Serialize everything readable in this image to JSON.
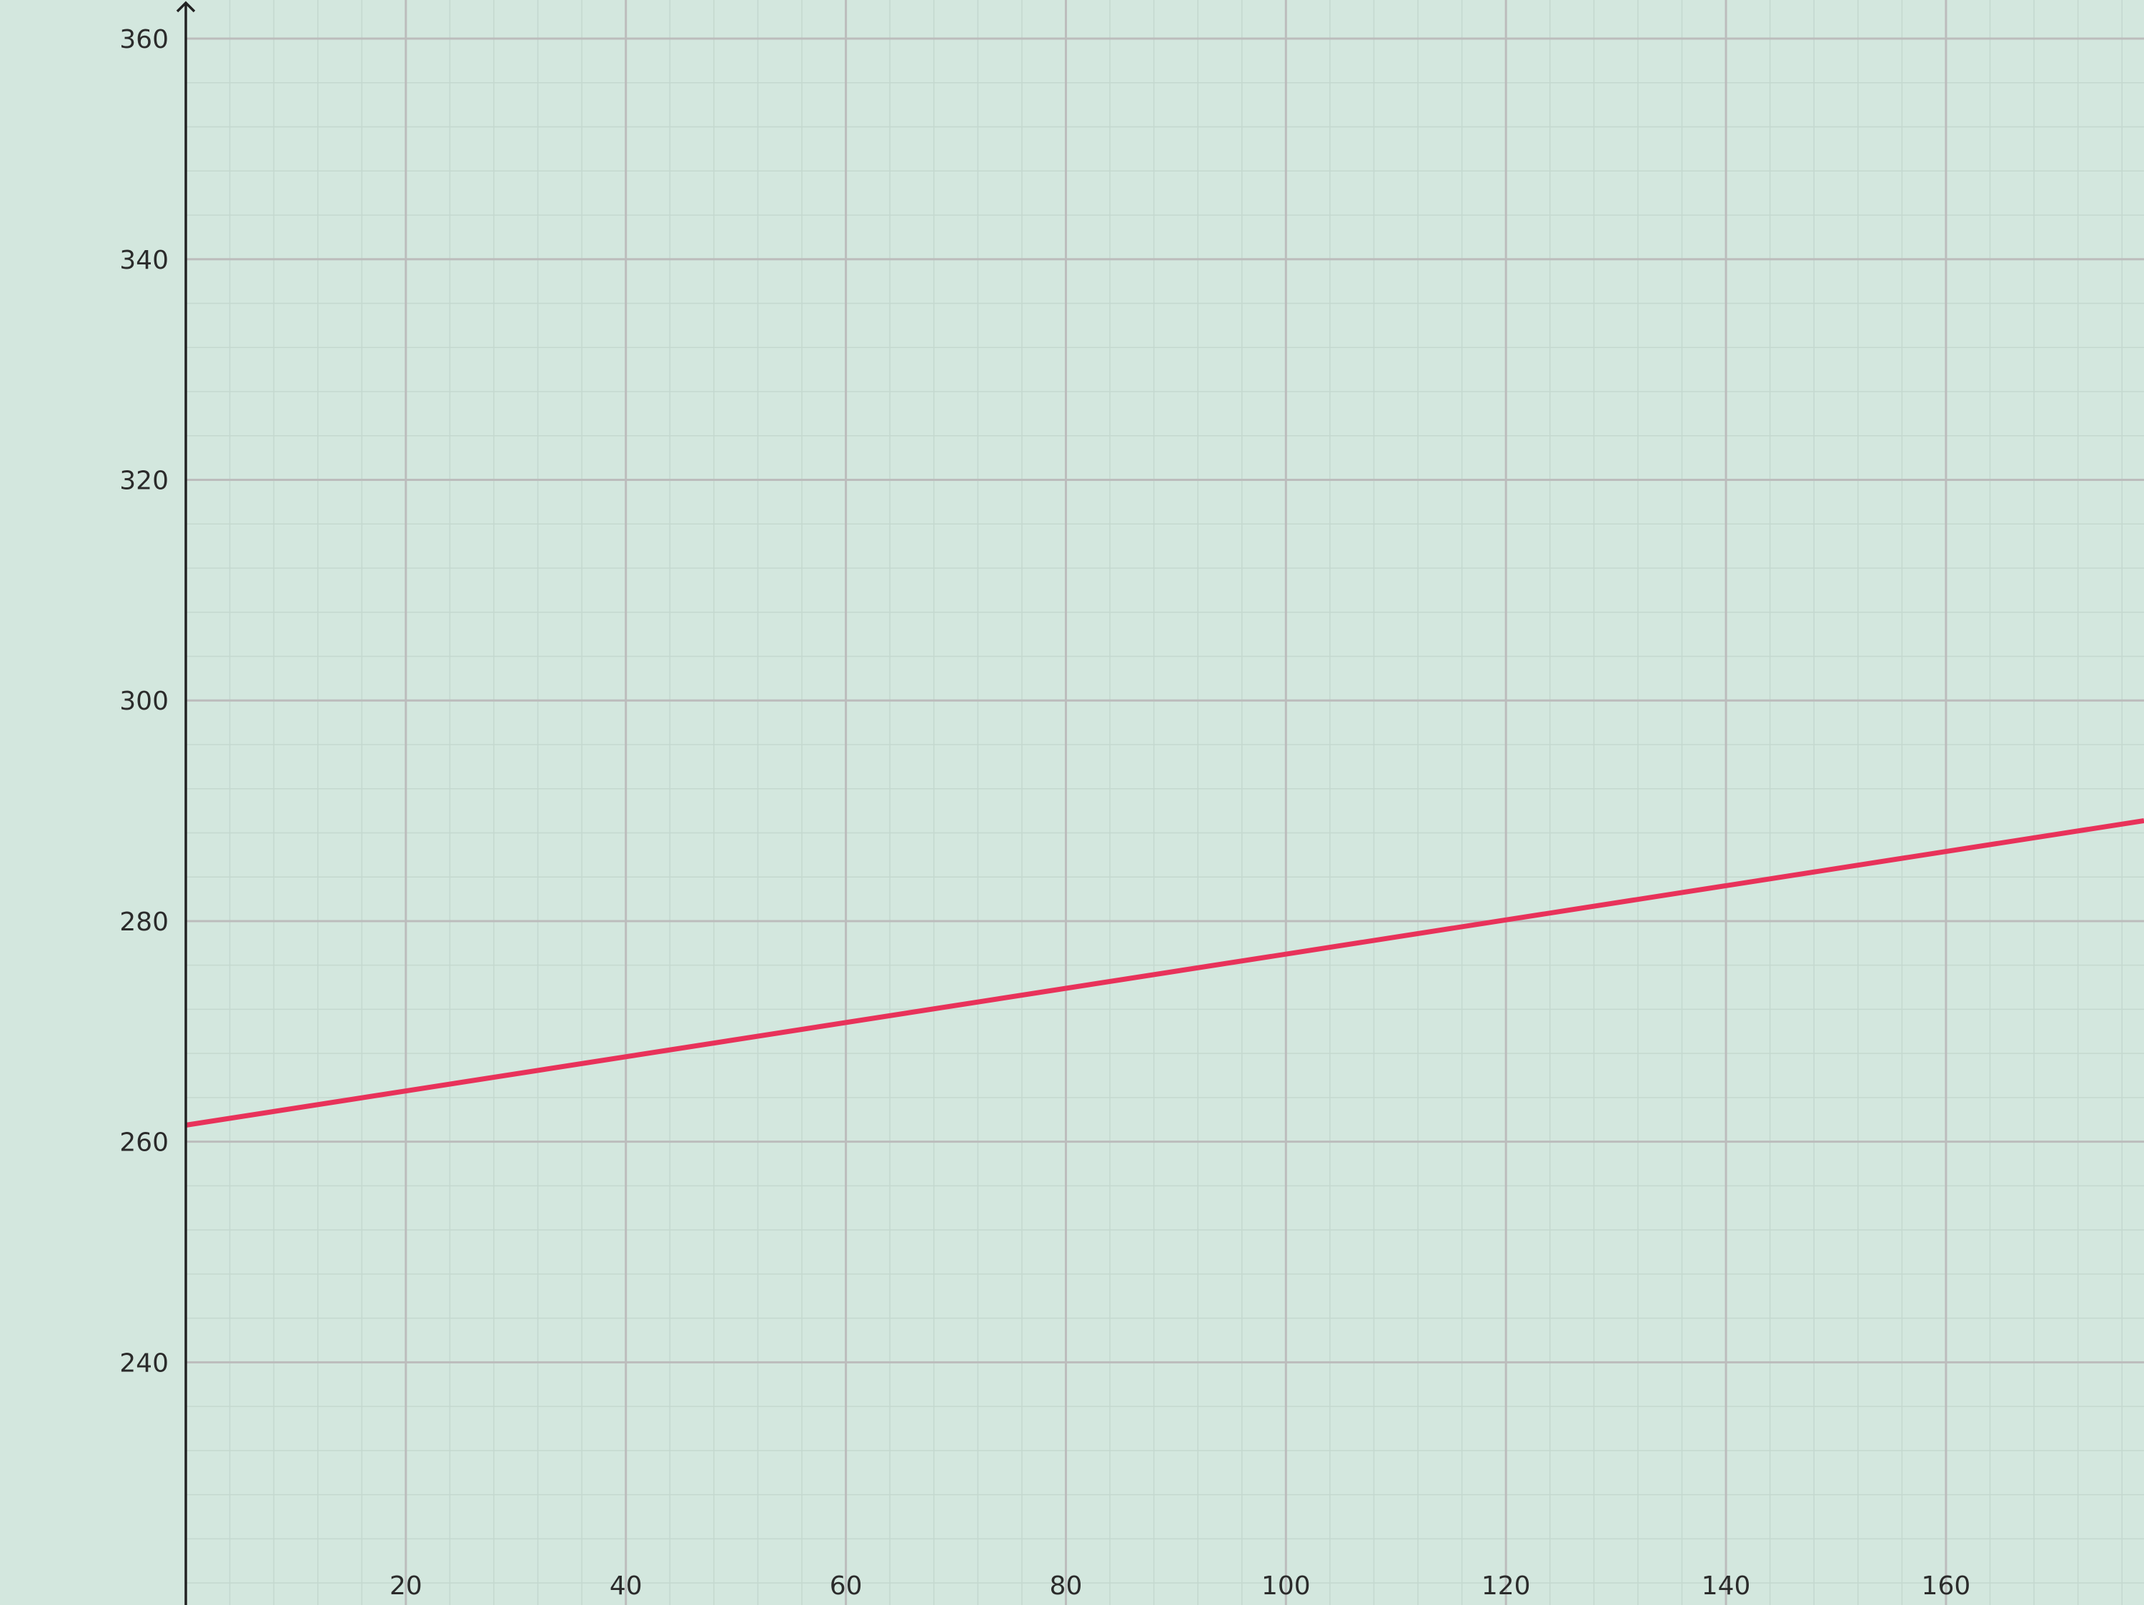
{
  "chart_data": {
    "type": "line",
    "title": "",
    "xlabel": "",
    "ylabel": "",
    "xlim": [
      0,
      178
    ],
    "ylim": [
      218,
      363.5
    ],
    "x_ticks": [
      20,
      40,
      60,
      80,
      100,
      120,
      140,
      160
    ],
    "y_ticks": [
      240,
      260,
      280,
      300,
      320,
      340,
      360
    ],
    "x_minor_step": 4,
    "y_minor_step": 4,
    "grid": true,
    "legend": "none",
    "colors": {
      "background": "#d3e7de",
      "grid_major": "#bcbcbc",
      "grid_minor": "#c4d8cf",
      "axis": "#222222",
      "series": "#e8325a"
    },
    "series": [
      {
        "x": [
          0,
          178
        ],
        "y": [
          261.5,
          289.1
        ]
      }
    ]
  }
}
